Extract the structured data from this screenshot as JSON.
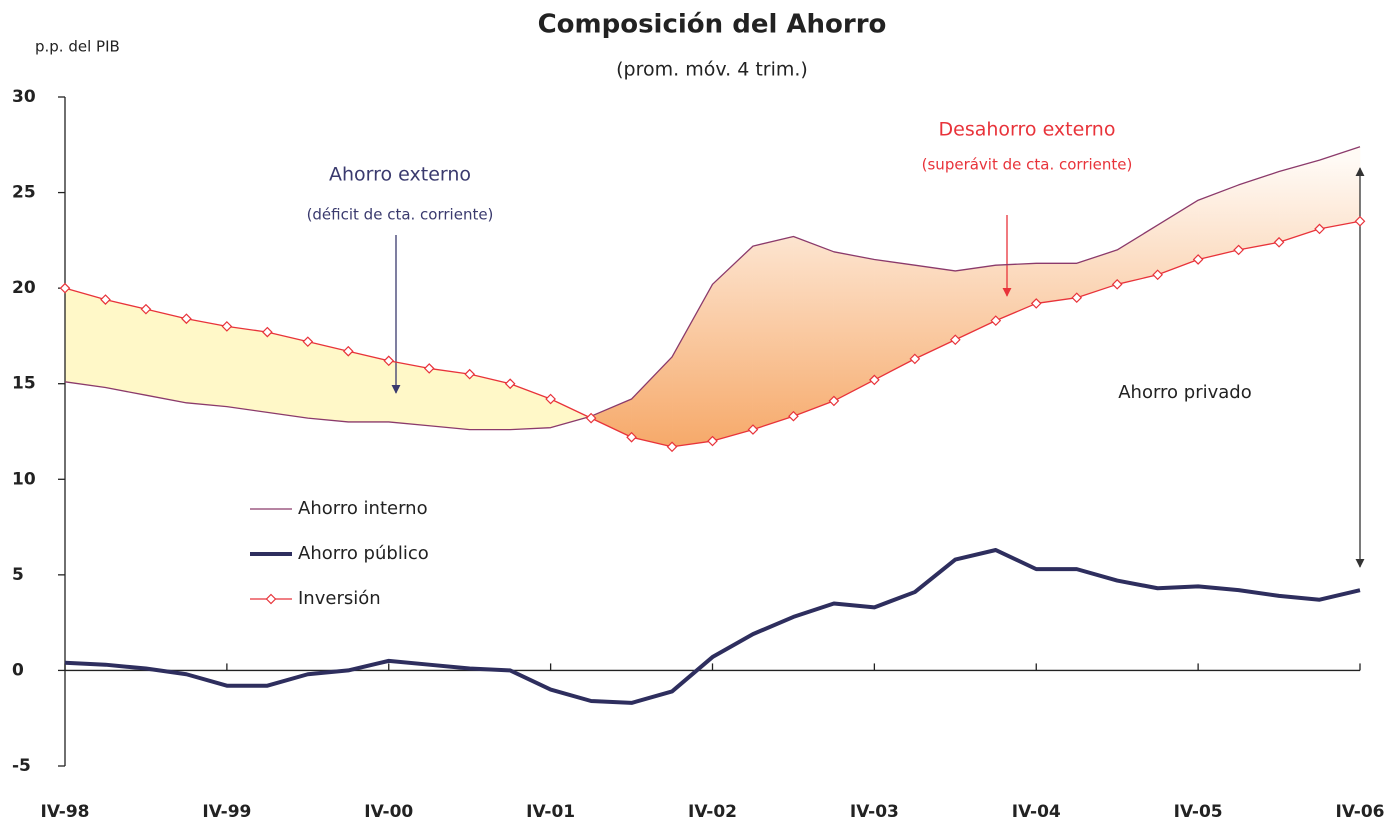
{
  "chart_data": {
    "type": "line",
    "title": "Composición del Ahorro",
    "subtitle": "(prom. móv. 4 trim.)",
    "y_label": "p.p. del PIB",
    "categories": [
      "IV-98",
      null,
      null,
      null,
      "IV-99",
      null,
      null,
      null,
      "IV-00",
      null,
      null,
      null,
      "IV-01",
      null,
      null,
      null,
      "IV-02",
      null,
      null,
      null,
      "IV-03",
      null,
      null,
      null,
      "IV-04",
      null,
      null,
      null,
      "IV-05",
      null,
      null,
      null,
      "IV-06"
    ],
    "series": [
      {
        "name": "Ahorro interno",
        "color": "#8b3a6b",
        "values": [
          15.1,
          14.8,
          14.4,
          14.0,
          13.8,
          13.5,
          13.2,
          13.0,
          13.0,
          12.8,
          12.6,
          12.6,
          12.7,
          13.3,
          14.2,
          16.4,
          20.2,
          22.2,
          22.7,
          21.9,
          21.5,
          21.2,
          20.9,
          21.2,
          21.3,
          21.3,
          22.0,
          23.3,
          24.6,
          25.4,
          26.1,
          26.7,
          27.4
        ]
      },
      {
        "name": "Ahorro público",
        "color": "#2e2e5e",
        "values": [
          0.4,
          0.3,
          0.1,
          -0.2,
          -0.8,
          -0.8,
          -0.2,
          0.0,
          0.5,
          0.3,
          0.1,
          0.0,
          -1.0,
          -1.6,
          -1.7,
          -1.1,
          0.7,
          1.9,
          2.8,
          3.5,
          3.3,
          4.1,
          5.8,
          6.3,
          5.3,
          5.3,
          4.7,
          4.3,
          4.4,
          4.2,
          3.9,
          3.7,
          4.2
        ]
      },
      {
        "name": "Inversión",
        "color": "#e8333a",
        "marker": "diamond",
        "values": [
          20.0,
          19.4,
          18.9,
          18.4,
          18.0,
          17.7,
          17.2,
          16.7,
          16.2,
          15.8,
          15.5,
          15.0,
          14.2,
          13.2,
          12.2,
          11.7,
          12.0,
          12.6,
          13.3,
          14.1,
          15.2,
          16.3,
          17.3,
          18.3,
          19.2,
          19.5,
          20.2,
          20.7,
          21.5,
          22.0,
          22.4,
          23.1,
          23.5
        ]
      }
    ],
    "ylim": [
      -5,
      30
    ],
    "yticks": [
      -5,
      0,
      5,
      10,
      15,
      20,
      25,
      30
    ],
    "annotations": [
      {
        "text": "Ahorro externo",
        "color": "#3a3a6e"
      },
      {
        "text": "(déficit de cta. corriente)",
        "color": "#3a3a6e"
      },
      {
        "text": "Desahorro externo",
        "color": "#e8333a"
      },
      {
        "text": "(superávit de cta. corriente)",
        "color": "#e8333a"
      },
      {
        "text": "Ahorro privado",
        "color": "#222222"
      }
    ]
  }
}
